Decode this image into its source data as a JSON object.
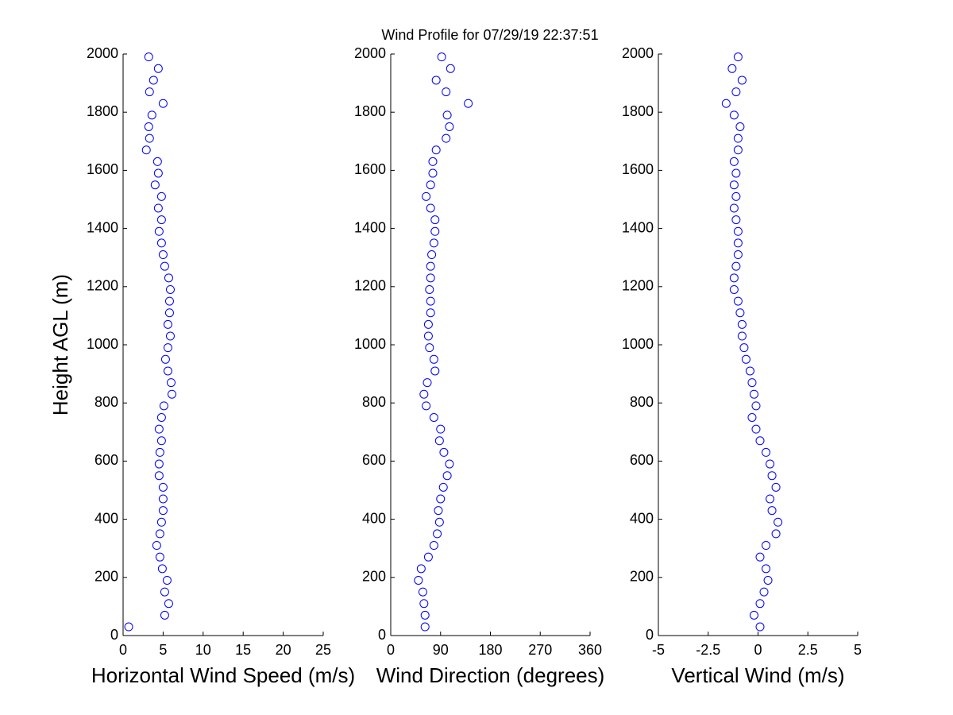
{
  "title": "Wind Profile for  07/29/19 22:37:51",
  "chart_data": [
    {
      "type": "scatter",
      "xlabel": "Horizontal Wind Speed (m/s)",
      "ylabel": "Height AGL (m)",
      "color": "#0000ff",
      "xlim": [
        0,
        25
      ],
      "xticks": [
        0,
        5,
        10,
        15,
        20,
        25
      ],
      "ylim": [
        0,
        2000
      ],
      "yticks": [
        0,
        200,
        400,
        600,
        800,
        1000,
        1200,
        1400,
        1600,
        1800,
        2000
      ],
      "x": [
        0.7,
        5.2,
        5.7,
        5.2,
        5.5,
        4.9,
        4.6,
        4.2,
        4.6,
        4.8,
        5.0,
        5.0,
        5.0,
        4.5,
        4.5,
        4.6,
        4.8,
        4.5,
        4.8,
        5.1,
        6.1,
        6.0,
        5.6,
        5.3,
        5.6,
        5.9,
        5.6,
        5.8,
        5.8,
        5.9,
        5.7,
        5.2,
        5.0,
        4.8,
        4.5,
        4.8,
        4.4,
        4.8,
        4.0,
        4.4,
        4.3,
        2.9,
        3.3,
        3.2,
        3.6,
        5.0,
        3.3,
        3.8,
        4.4,
        3.2
      ],
      "y": [
        30,
        70,
        110,
        150,
        190,
        230,
        270,
        310,
        350,
        390,
        430,
        470,
        510,
        550,
        590,
        630,
        670,
        710,
        750,
        790,
        830,
        870,
        910,
        950,
        990,
        1030,
        1070,
        1110,
        1150,
        1190,
        1230,
        1270,
        1310,
        1350,
        1390,
        1430,
        1470,
        1510,
        1550,
        1590,
        1630,
        1670,
        1710,
        1750,
        1790,
        1830,
        1870,
        1910,
        1950,
        1990
      ]
    },
    {
      "type": "scatter",
      "xlabel": "Wind Direction (degrees)",
      "color": "#0000ff",
      "xlim": [
        0,
        360
      ],
      "xticks": [
        0,
        90,
        180,
        270,
        360
      ],
      "ylim": [
        0,
        2000
      ],
      "yticks": [
        0,
        200,
        400,
        600,
        800,
        1000,
        1200,
        1400,
        1600,
        1800,
        2000
      ],
      "x": [
        62,
        62,
        60,
        58,
        50,
        55,
        68,
        78,
        84,
        88,
        86,
        90,
        95,
        102,
        106,
        96,
        88,
        90,
        78,
        64,
        60,
        66,
        80,
        78,
        70,
        68,
        68,
        72,
        72,
        70,
        72,
        72,
        74,
        78,
        80,
        80,
        72,
        64,
        72,
        76,
        76,
        82,
        100,
        106,
        102,
        140,
        100,
        82,
        108,
        92
      ],
      "y": [
        30,
        70,
        110,
        150,
        190,
        230,
        270,
        310,
        350,
        390,
        430,
        470,
        510,
        550,
        590,
        630,
        670,
        710,
        750,
        790,
        830,
        870,
        910,
        950,
        990,
        1030,
        1070,
        1110,
        1150,
        1190,
        1230,
        1270,
        1310,
        1350,
        1390,
        1430,
        1470,
        1510,
        1550,
        1590,
        1630,
        1670,
        1710,
        1750,
        1790,
        1830,
        1870,
        1910,
        1950,
        1990
      ]
    },
    {
      "type": "scatter",
      "xlabel": "Vertical Wind (m/s)",
      "color": "#0000ff",
      "xlim": [
        -5,
        5
      ],
      "xticks": [
        -5,
        -2.5,
        0,
        2.5,
        5
      ],
      "ylim": [
        0,
        2000
      ],
      "yticks": [
        0,
        200,
        400,
        600,
        800,
        1000,
        1200,
        1400,
        1600,
        1800,
        2000
      ],
      "x": [
        0.1,
        -0.2,
        0.1,
        0.3,
        0.5,
        0.4,
        0.1,
        0.4,
        0.9,
        1.0,
        0.7,
        0.6,
        0.9,
        0.7,
        0.6,
        0.4,
        0.1,
        -0.1,
        -0.3,
        -0.1,
        -0.2,
        -0.3,
        -0.4,
        -0.6,
        -0.7,
        -0.8,
        -0.8,
        -0.9,
        -1.0,
        -1.2,
        -1.2,
        -1.1,
        -1.0,
        -1.0,
        -1.0,
        -1.1,
        -1.2,
        -1.1,
        -1.2,
        -1.1,
        -1.2,
        -1.0,
        -1.0,
        -0.9,
        -1.2,
        -1.6,
        -1.1,
        -0.8,
        -1.3,
        -1.0
      ],
      "y": [
        30,
        70,
        110,
        150,
        190,
        230,
        270,
        310,
        350,
        390,
        430,
        470,
        510,
        550,
        590,
        630,
        670,
        710,
        750,
        790,
        830,
        870,
        910,
        950,
        990,
        1030,
        1070,
        1110,
        1150,
        1190,
        1230,
        1270,
        1310,
        1350,
        1390,
        1430,
        1470,
        1510,
        1550,
        1590,
        1630,
        1670,
        1710,
        1750,
        1790,
        1830,
        1870,
        1910,
        1950,
        1990
      ]
    }
  ]
}
